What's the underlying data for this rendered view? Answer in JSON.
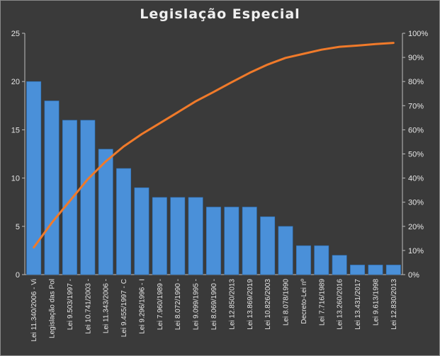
{
  "chart_data": {
    "type": "bar",
    "title": "Legislação  Especial",
    "categories": [
      "Lei 11.340/2006 - Vi",
      "Legislação das Pol",
      "Lei 9.503/1997 -",
      "Lei 10.741/2003 -",
      "Lei 11.343/2006 -",
      "Lei 9.455/1997 - C",
      "Lei 9.296/1996 - I",
      "Lei 7.960/1989 -",
      "Lei 8.072/1990 -",
      "Lei 9.099/1995 -",
      "Lei 8.069/1990 -",
      "Lei 12.850/2013",
      "Lei 13.869/2019",
      "Lei 10.826/2003",
      "Lei 8.078/1990",
      "Decreto-Lei nº",
      "Lei 7.716/1989",
      "Lei 13.260/2016",
      "Lei 13.431/2017",
      "Lei 9.613/1998",
      "Lei 12.830/2013"
    ],
    "series": [
      {
        "type": "bar",
        "color": "#4a90d9",
        "values": [
          20,
          18,
          16,
          16,
          13,
          11,
          9,
          8,
          8,
          8,
          7,
          7,
          7,
          6,
          5,
          3,
          3,
          2,
          1,
          1,
          1
        ]
      },
      {
        "type": "line",
        "axis": "right",
        "color": "#f07a2a",
        "values": [
          11.3,
          21.5,
          30.5,
          39.5,
          46.9,
          53.1,
          58.2,
          62.7,
          67.2,
          71.8,
          75.7,
          79.7,
          83.6,
          87.0,
          89.8,
          91.5,
          93.2,
          94.4,
          94.9,
          95.5,
          96.0
        ]
      }
    ],
    "ylim": [
      0,
      25
    ],
    "yticks": [
      0,
      5,
      10,
      15,
      20,
      25
    ],
    "y2lim": [
      0,
      100
    ],
    "y2ticks": [
      "0%",
      "10%",
      "20%",
      "30%",
      "40%",
      "50%",
      "60%",
      "70%",
      "80%",
      "90%",
      "100%"
    ],
    "grid": false,
    "legend": "none"
  }
}
